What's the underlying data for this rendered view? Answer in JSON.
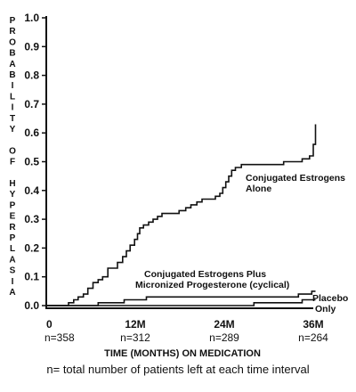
{
  "chart_data": {
    "type": "line",
    "ylabel": "PROBABILITY OF HYPERPLASIA",
    "xlabel": "TIME (MONTHS) ON MEDICATION",
    "footnote": "n= total number of patients left at each time interval",
    "ylim": [
      0,
      1.0
    ],
    "xlim": [
      0,
      36
    ],
    "grid": false,
    "y_ticks": [
      "0.0",
      "0.1",
      "0.2",
      "0.3",
      "0.4",
      "0.5",
      "0.6",
      "0.7",
      "0.8",
      "0.9",
      "1.0"
    ],
    "x_ticks": [
      {
        "value": 0,
        "label": "0",
        "n": "n=358"
      },
      {
        "value": 12,
        "label": "12M",
        "n": "n=312"
      },
      {
        "value": 24,
        "label": "24M",
        "n": "n=289"
      },
      {
        "value": 36,
        "label": "36M",
        "n": "n=264"
      }
    ],
    "series": [
      {
        "name": "Conjugated Estrogens Alone",
        "label_lines": [
          "Conjugated Estrogens",
          "Alone"
        ],
        "points": [
          [
            0,
            0.0
          ],
          [
            3,
            0.0
          ],
          [
            3,
            0.01
          ],
          [
            3.7,
            0.01
          ],
          [
            3.7,
            0.02
          ],
          [
            4.3,
            0.02
          ],
          [
            4.3,
            0.03
          ],
          [
            5.0,
            0.03
          ],
          [
            5.0,
            0.04
          ],
          [
            5.6,
            0.04
          ],
          [
            5.6,
            0.06
          ],
          [
            6.3,
            0.06
          ],
          [
            6.3,
            0.08
          ],
          [
            7.0,
            0.08
          ],
          [
            7.0,
            0.09
          ],
          [
            7.6,
            0.09
          ],
          [
            7.6,
            0.1
          ],
          [
            8.3,
            0.1
          ],
          [
            8.3,
            0.13
          ],
          [
            9.6,
            0.13
          ],
          [
            9.6,
            0.15
          ],
          [
            10.3,
            0.15
          ],
          [
            10.3,
            0.17
          ],
          [
            10.8,
            0.17
          ],
          [
            10.8,
            0.19
          ],
          [
            11.3,
            0.19
          ],
          [
            11.3,
            0.21
          ],
          [
            11.9,
            0.21
          ],
          [
            11.9,
            0.23
          ],
          [
            12.3,
            0.23
          ],
          [
            12.3,
            0.25
          ],
          [
            12.6,
            0.25
          ],
          [
            12.6,
            0.27
          ],
          [
            13.1,
            0.27
          ],
          [
            13.1,
            0.28
          ],
          [
            13.8,
            0.28
          ],
          [
            13.8,
            0.29
          ],
          [
            14.4,
            0.29
          ],
          [
            14.4,
            0.3
          ],
          [
            15.0,
            0.3
          ],
          [
            15.0,
            0.31
          ],
          [
            15.6,
            0.31
          ],
          [
            15.6,
            0.32
          ],
          [
            17.9,
            0.32
          ],
          [
            17.9,
            0.33
          ],
          [
            18.8,
            0.33
          ],
          [
            18.8,
            0.34
          ],
          [
            19.5,
            0.34
          ],
          [
            19.5,
            0.35
          ],
          [
            20.3,
            0.35
          ],
          [
            20.3,
            0.36
          ],
          [
            21.0,
            0.36
          ],
          [
            21.0,
            0.37
          ],
          [
            22.8,
            0.37
          ],
          [
            22.8,
            0.38
          ],
          [
            23.4,
            0.38
          ],
          [
            23.4,
            0.39
          ],
          [
            23.8,
            0.39
          ],
          [
            23.8,
            0.41
          ],
          [
            24.2,
            0.41
          ],
          [
            24.2,
            0.43
          ],
          [
            24.6,
            0.43
          ],
          [
            24.6,
            0.45
          ],
          [
            25.0,
            0.45
          ],
          [
            25.0,
            0.47
          ],
          [
            25.5,
            0.47
          ],
          [
            25.5,
            0.48
          ],
          [
            26.3,
            0.48
          ],
          [
            26.3,
            0.49
          ],
          [
            32.0,
            0.49
          ],
          [
            32.0,
            0.5
          ],
          [
            34.5,
            0.5
          ],
          [
            34.5,
            0.51
          ],
          [
            35.5,
            0.51
          ],
          [
            35.5,
            0.52
          ],
          [
            36.0,
            0.52
          ],
          [
            36.0,
            0.56
          ],
          [
            36.3,
            0.56
          ],
          [
            36.3,
            0.63
          ]
        ]
      },
      {
        "name": "Conjugated Estrogens Plus Micronized Progesterone (cyclical)",
        "label_lines": [
          "Conjugated Estrogens Plus",
          "Micronized Progesterone (cyclical)"
        ],
        "points": [
          [
            0,
            0.0
          ],
          [
            7.0,
            0.0
          ],
          [
            7.0,
            0.01
          ],
          [
            10.5,
            0.01
          ],
          [
            10.5,
            0.02
          ],
          [
            13.5,
            0.02
          ],
          [
            13.5,
            0.03
          ],
          [
            34.0,
            0.03
          ],
          [
            34.0,
            0.04
          ],
          [
            35.8,
            0.04
          ],
          [
            35.8,
            0.05
          ],
          [
            36.3,
            0.05
          ]
        ]
      },
      {
        "name": "Placebo Only",
        "label_lines": [
          "Placebo",
          "Only"
        ],
        "points": [
          [
            0,
            0.0
          ],
          [
            28.0,
            0.0
          ],
          [
            28.0,
            0.01
          ],
          [
            34.5,
            0.01
          ],
          [
            34.5,
            0.02
          ],
          [
            36.3,
            0.02
          ]
        ]
      }
    ]
  }
}
